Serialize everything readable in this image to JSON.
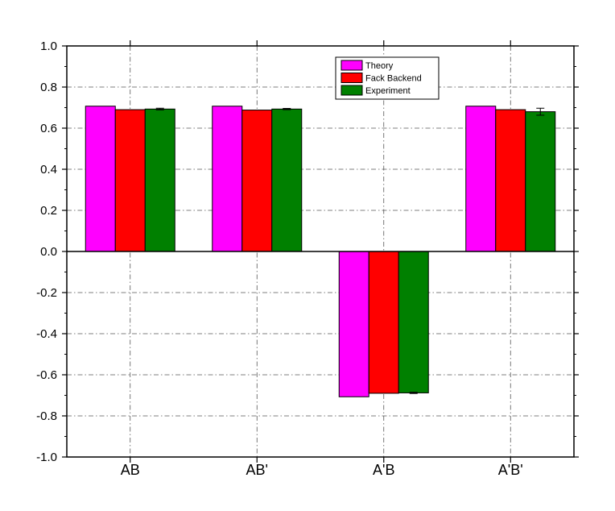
{
  "chart_data": {
    "type": "bar",
    "title": "",
    "xlabel": "",
    "ylabel": "",
    "categories": [
      "AB",
      "AB'",
      "A'B",
      "A'B'"
    ],
    "ylim": [
      -1.0,
      1.0
    ],
    "yticks": [
      "-1.0",
      "-0.8",
      "-0.6",
      "-0.4",
      "-0.2",
      "0.0",
      "0.2",
      "0.4",
      "0.6",
      "0.8",
      "1.0"
    ],
    "grid": true,
    "legend_position": "top-right",
    "series": [
      {
        "name": "Theory",
        "color": "#ff00ff",
        "values": [
          0.707,
          0.707,
          -0.707,
          0.707
        ],
        "errors": [
          0,
          0,
          0,
          0
        ]
      },
      {
        "name": "Fack Backend",
        "color": "#ff0000",
        "values": [
          0.69,
          0.688,
          -0.69,
          0.69
        ],
        "errors": [
          0,
          0,
          0,
          0
        ]
      },
      {
        "name": "Experiment",
        "color": "#008000",
        "values": [
          0.693,
          0.693,
          -0.688,
          0.68
        ],
        "errors": [
          0.004,
          0.003,
          0.003,
          0.017
        ]
      }
    ]
  }
}
